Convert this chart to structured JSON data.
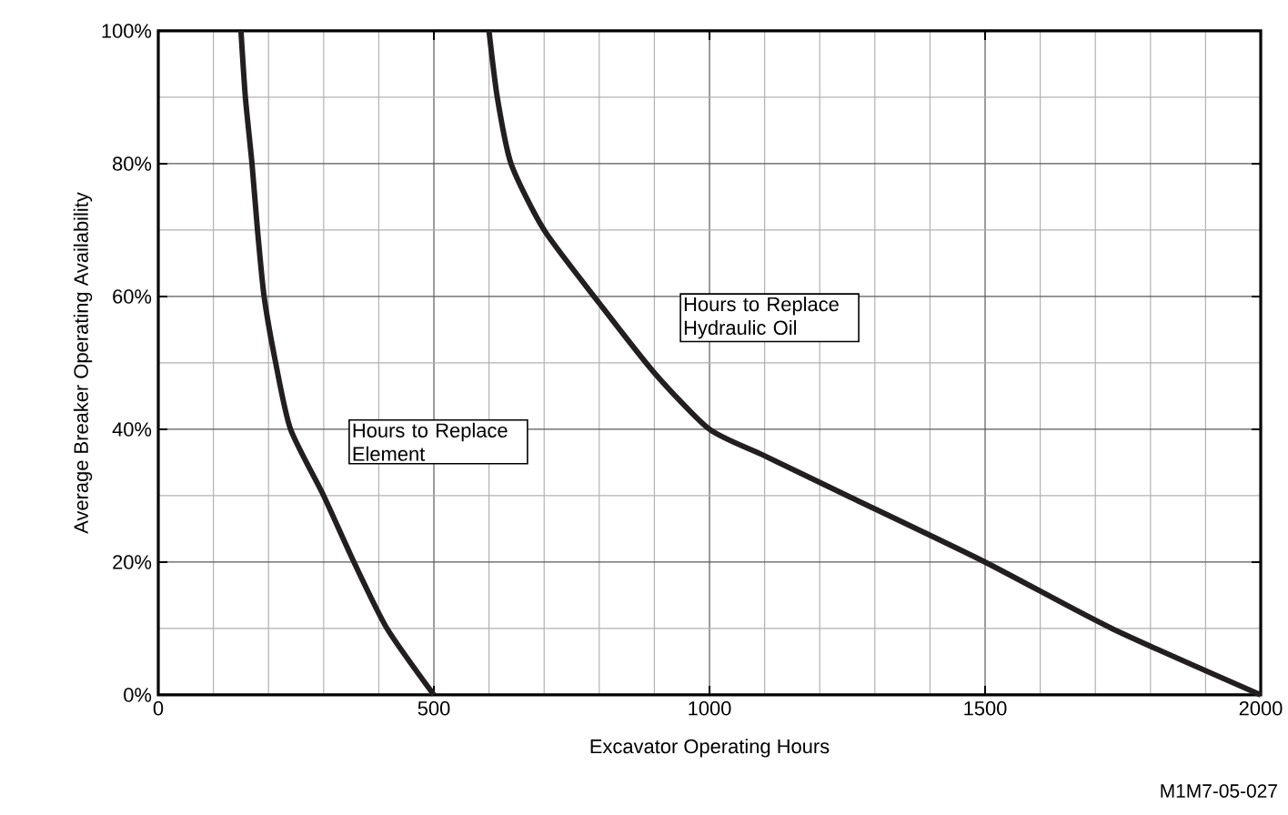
{
  "chart_data": {
    "type": "line",
    "xlabel": "Excavator Operating Hours",
    "ylabel": "Average Breaker Operating Availability",
    "annotations": [
      "M1M7-05-027"
    ],
    "xlim": [
      0,
      2000
    ],
    "xticks": [
      0,
      500,
      1000,
      1500,
      2000
    ],
    "ylim": [
      0,
      100
    ],
    "yticks": [
      {
        "value": 0,
        "label": "0%"
      },
      {
        "value": 20,
        "label": "20%"
      },
      {
        "value": 40,
        "label": "40%"
      },
      {
        "value": 60,
        "label": "60%"
      },
      {
        "value": 80,
        "label": "80%"
      },
      {
        "value": 100,
        "label": "100%"
      }
    ],
    "grid": true,
    "marker": "none",
    "line_style": "solid",
    "series": [
      {
        "name": "Hours to Replace Element",
        "color": "#231f20",
        "x": [
          150,
          158,
          170,
          180,
          192,
          213,
          240,
          300,
          355,
          415,
          500
        ],
        "values": [
          100,
          90,
          80,
          70,
          60,
          50,
          40,
          30,
          20,
          10,
          0
        ]
      },
      {
        "name": "Hours to Replace Hydraulic Oil",
        "color": "#231f20",
        "x": [
          600,
          615,
          640,
          700,
          800,
          900,
          1000,
          1100,
          1250,
          1500,
          1730,
          2000
        ],
        "values": [
          100,
          90,
          80,
          70,
          59,
          48.5,
          40,
          36,
          30,
          20,
          10,
          0
        ]
      }
    ]
  }
}
